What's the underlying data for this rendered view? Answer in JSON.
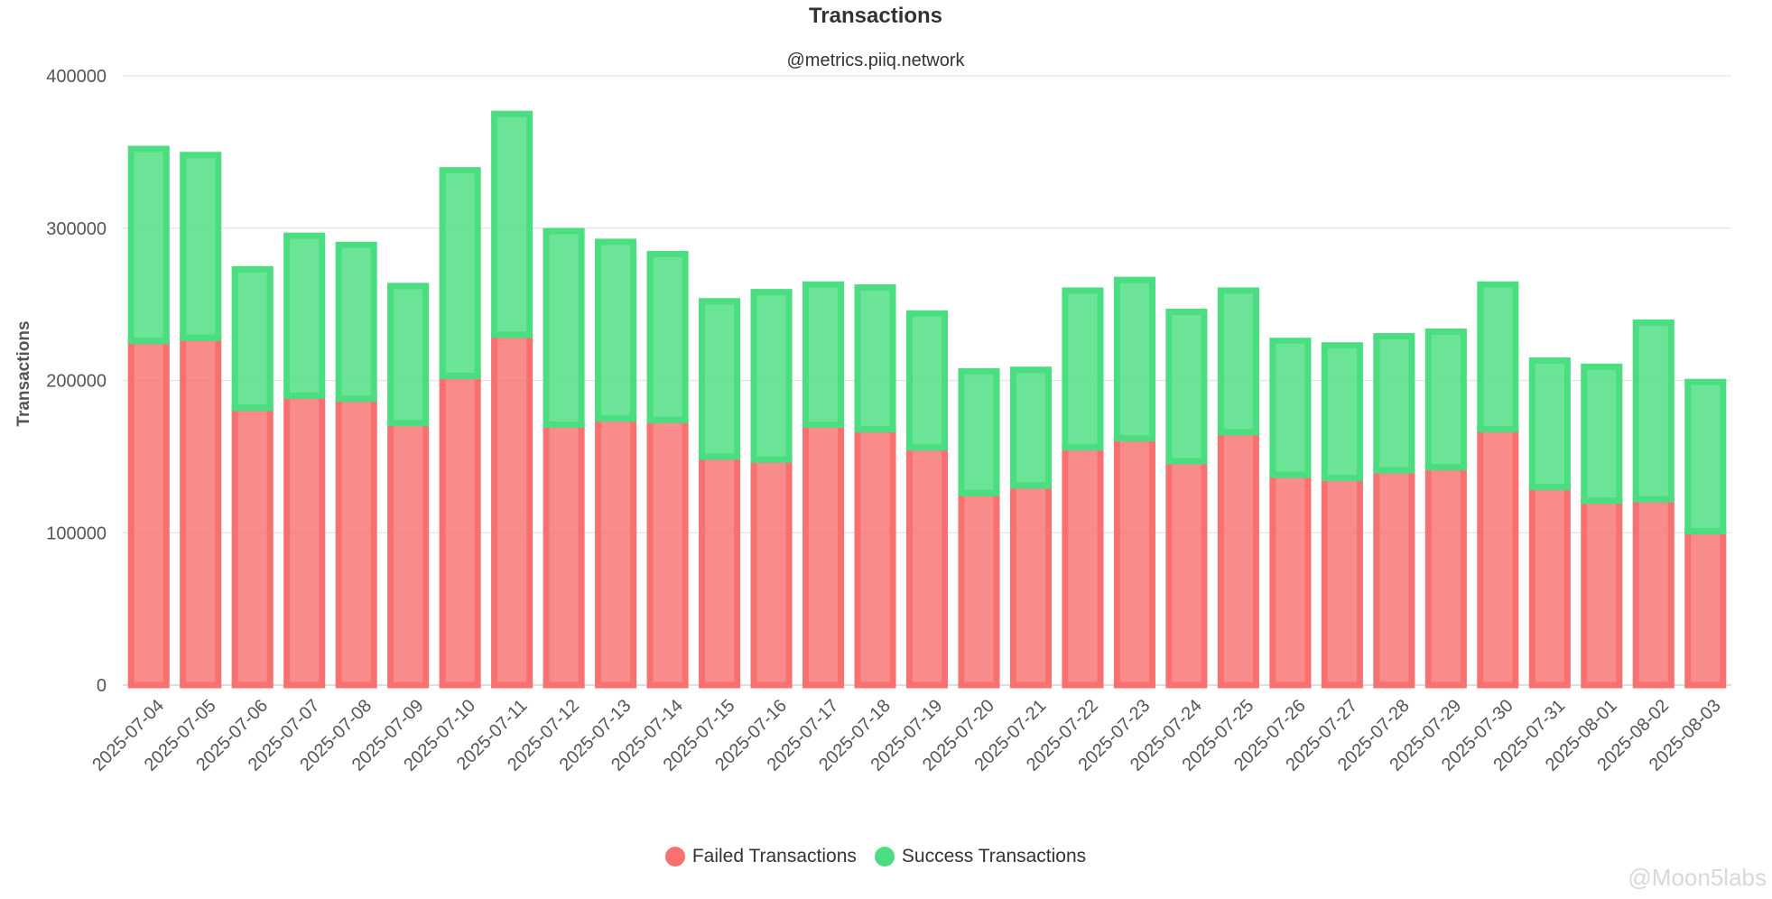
{
  "chart_data": {
    "type": "bar",
    "stacked": true,
    "title": "Transactions",
    "subtitle": "@metrics.piiq.network",
    "xlabel": "",
    "ylabel": "Transactions",
    "ylim": [
      0,
      400000
    ],
    "yticks": [
      "0",
      "100000",
      "200000",
      "300000",
      "400000"
    ],
    "grid": true,
    "legend_position": "bottom",
    "categories": [
      "2025-07-04",
      "2025-07-05",
      "2025-07-06",
      "2025-07-07",
      "2025-07-08",
      "2025-07-09",
      "2025-07-10",
      "2025-07-11",
      "2025-07-12",
      "2025-07-13",
      "2025-07-14",
      "2025-07-15",
      "2025-07-16",
      "2025-07-17",
      "2025-07-18",
      "2025-07-19",
      "2025-07-20",
      "2025-07-21",
      "2025-07-22",
      "2025-07-23",
      "2025-07-24",
      "2025-07-25",
      "2025-07-26",
      "2025-07-27",
      "2025-07-28",
      "2025-07-29",
      "2025-07-30",
      "2025-07-31",
      "2025-08-01",
      "2025-08-02",
      "2025-08-03"
    ],
    "series": [
      {
        "name": "Failed Transactions",
        "color": "#f87171",
        "values": [
          226000,
          228000,
          182000,
          190000,
          188000,
          172000,
          203000,
          230000,
          171000,
          175000,
          174000,
          150000,
          148000,
          171000,
          168000,
          156000,
          126000,
          131000,
          156000,
          162000,
          147000,
          166000,
          138000,
          136000,
          141000,
          143000,
          168000,
          130000,
          121000,
          122000,
          101000
        ]
      },
      {
        "name": "Success Transactions",
        "color": "#4ade80",
        "values": [
          126000,
          120000,
          91000,
          105000,
          101000,
          90000,
          135000,
          145000,
          127000,
          116000,
          109000,
          102000,
          110000,
          92000,
          93000,
          88000,
          80000,
          76000,
          103000,
          104000,
          98000,
          93000,
          88000,
          87000,
          88000,
          89000,
          95000,
          83000,
          88000,
          116000,
          98000
        ]
      }
    ]
  },
  "watermark": "@Moon5labs"
}
